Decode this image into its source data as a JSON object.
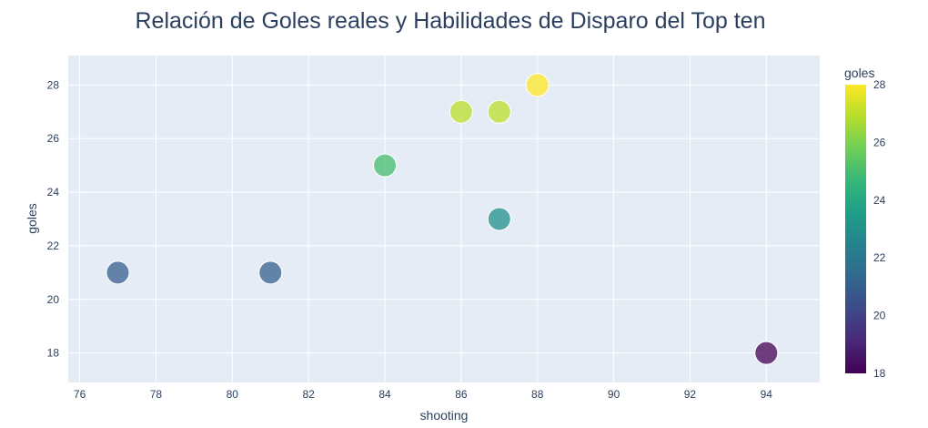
{
  "chart_data": {
    "type": "scatter",
    "title": "Relación de Goles reales y Habilidades de Disparo del Top ten",
    "xlabel": "shooting",
    "ylabel": "goles",
    "xlim": [
      75.7,
      95.4
    ],
    "ylim": [
      16.9,
      29.1
    ],
    "xticks": [
      76,
      78,
      80,
      82,
      84,
      86,
      88,
      90,
      92,
      94
    ],
    "yticks": [
      18,
      20,
      22,
      24,
      26,
      28
    ],
    "grid": true,
    "points": [
      {
        "x": 77,
        "y": 21
      },
      {
        "x": 81,
        "y": 21
      },
      {
        "x": 84,
        "y": 25
      },
      {
        "x": 86,
        "y": 27
      },
      {
        "x": 87,
        "y": 27
      },
      {
        "x": 87,
        "y": 23
      },
      {
        "x": 88,
        "y": 28
      },
      {
        "x": 94,
        "y": 18
      }
    ],
    "colorbar": {
      "title": "goles",
      "range": [
        18,
        28
      ],
      "ticks": [
        18,
        20,
        22,
        24,
        26,
        28
      ],
      "colorscale": "viridis"
    }
  },
  "colors": {
    "plot_bg": "#e5ecf6",
    "grid": "#ffffff",
    "text": "#2a3f5f",
    "viridis": [
      "#440154",
      "#482878",
      "#3e4989",
      "#31688e",
      "#26828e",
      "#1f9e89",
      "#35b779",
      "#6ece58",
      "#b5de2b",
      "#fde725"
    ]
  }
}
